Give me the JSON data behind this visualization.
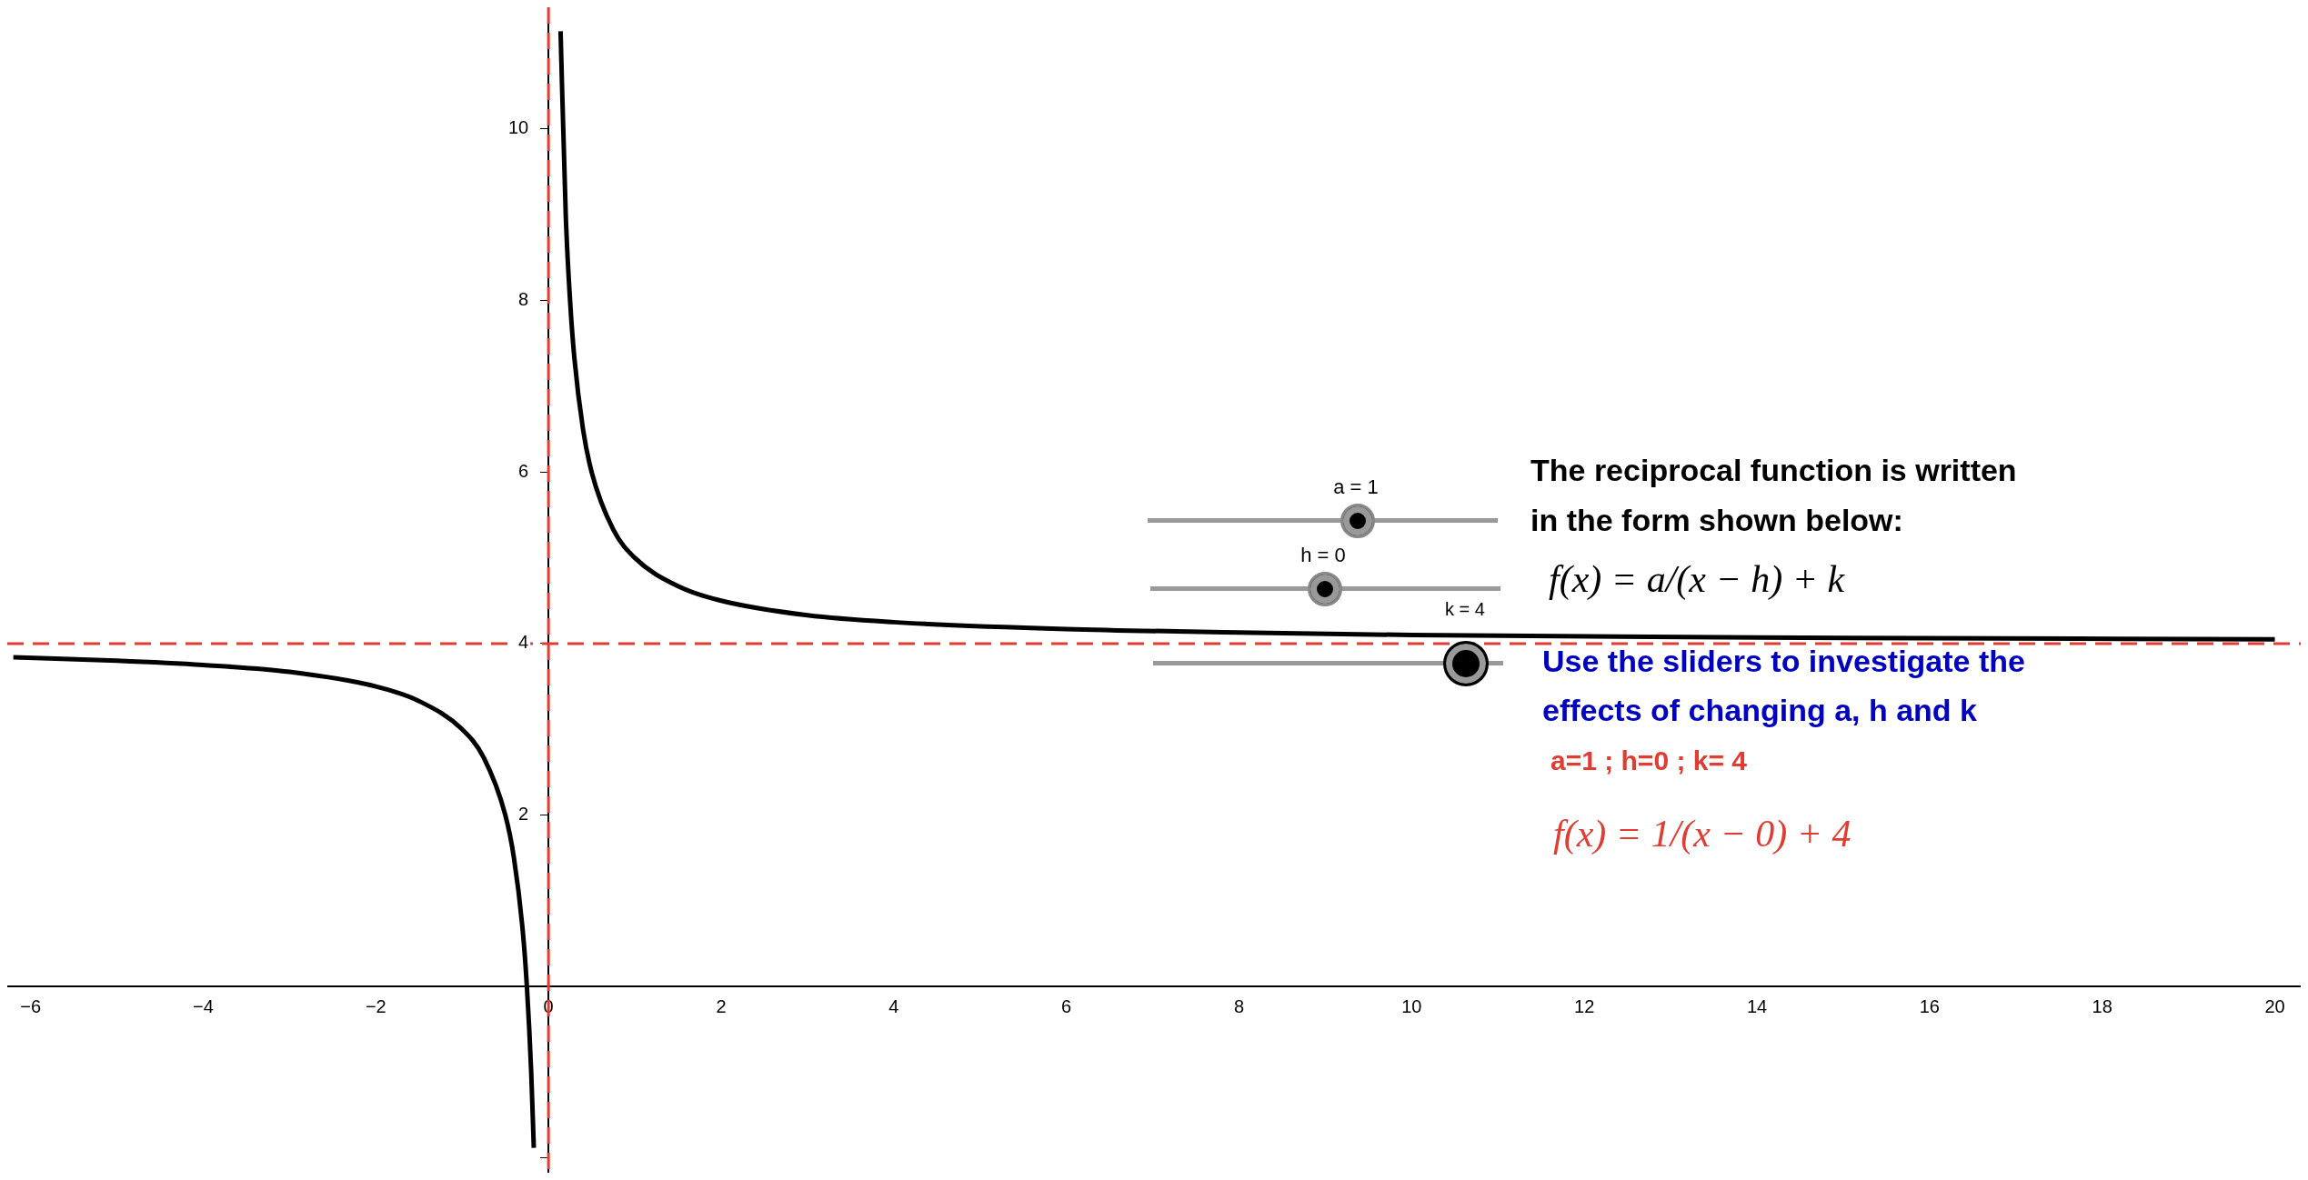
{
  "chart_data": {
    "type": "line",
    "x": [
      -6.2,
      -5,
      -4,
      -3,
      -2,
      -1.5,
      -1,
      -0.75,
      -0.5,
      -0.4,
      -0.3,
      -0.25,
      -0.2,
      -0.17,
      0,
      0.14,
      0.2,
      0.25,
      0.3,
      0.4,
      0.5,
      0.75,
      1,
      1.5,
      2,
      3,
      4,
      6,
      8,
      10,
      14,
      20
    ],
    "series": [
      {
        "color": "#000000",
        "values": [
          3.84,
          3.8,
          3.75,
          3.67,
          3.5,
          3.33,
          3,
          2.67,
          2,
          1.5,
          0.67,
          0,
          -1,
          -1.88,
          null,
          11.14,
          9,
          8,
          7.33,
          6.5,
          6,
          5.33,
          5,
          4.67,
          4.5,
          4.33,
          4.25,
          4.17,
          4.13,
          4.1,
          4.07,
          4.05
        ]
      }
    ],
    "xlim": [
      -6.27,
      20.3
    ],
    "ylim": [
      -2.17,
      11.42
    ],
    "xticks": [
      -6,
      -4,
      -2,
      0,
      2,
      4,
      6,
      8,
      10,
      12,
      14,
      16,
      18,
      20
    ],
    "yticks": [
      {
        "value": -2,
        "label": null
      },
      2,
      4,
      6,
      8,
      10
    ],
    "grid": false,
    "legend": false,
    "marker": "none",
    "line_style": "solid",
    "ref_lines": [
      {
        "axis": "x",
        "value": 0,
        "color": "#e03c31",
        "line_style": "dashed"
      },
      {
        "axis": "y",
        "value": 4,
        "color": "#e03c31",
        "line_style": "dashed"
      }
    ],
    "annotations": [
      "a = 1",
      "h = 0",
      "k = 4",
      "The reciprocal function is written",
      "in the form shown below:",
      "f(x) = a/(x − h) + k",
      "Use the sliders to investigate the",
      "effects of changing a, h and k",
      "a=1 ; h=0 ; k= 4",
      "f(x) = 1/(x − 0) + 4"
    ]
  }
}
